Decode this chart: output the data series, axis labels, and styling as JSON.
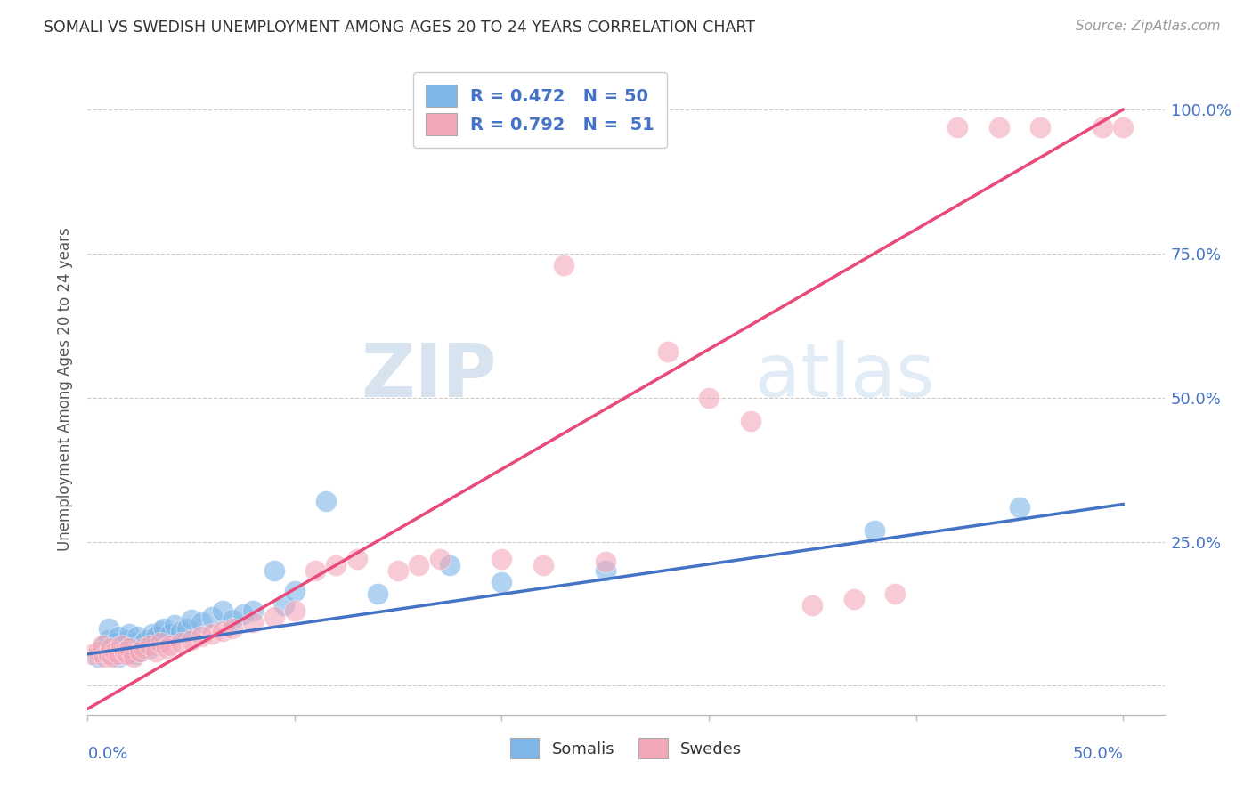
{
  "title": "SOMALI VS SWEDISH UNEMPLOYMENT AMONG AGES 20 TO 24 YEARS CORRELATION CHART",
  "source": "Source: ZipAtlas.com",
  "ylabel": "Unemployment Among Ages 20 to 24 years",
  "xlim": [
    0.0,
    0.52
  ],
  "ylim": [
    -0.05,
    1.08
  ],
  "somali_color": "#7EB6E8",
  "swede_color": "#F4A7B9",
  "somali_line_color": "#4472C4",
  "swede_line_color": "#E84B7A",
  "legend_somali_label": "R = 0.472   N = 50",
  "legend_swede_label": "R = 0.792   N =  51",
  "legend_bottom_somali": "Somalis",
  "legend_bottom_swede": "Swedes",
  "watermark_zip": "ZIP",
  "watermark_atlas": "atlas",
  "somali_scatter_x": [
    0.005,
    0.008,
    0.01,
    0.01,
    0.01,
    0.012,
    0.013,
    0.014,
    0.015,
    0.015,
    0.016,
    0.017,
    0.018,
    0.019,
    0.02,
    0.02,
    0.021,
    0.022,
    0.023,
    0.024,
    0.025,
    0.026,
    0.027,
    0.028,
    0.03,
    0.031,
    0.033,
    0.035,
    0.037,
    0.04,
    0.042,
    0.045,
    0.048,
    0.05,
    0.055,
    0.06,
    0.065,
    0.07,
    0.075,
    0.08,
    0.09,
    0.095,
    0.1,
    0.115,
    0.14,
    0.175,
    0.2,
    0.25,
    0.38,
    0.45
  ],
  "somali_scatter_y": [
    0.05,
    0.07,
    0.06,
    0.08,
    0.1,
    0.055,
    0.075,
    0.065,
    0.05,
    0.085,
    0.06,
    0.07,
    0.055,
    0.08,
    0.06,
    0.09,
    0.065,
    0.075,
    0.055,
    0.085,
    0.06,
    0.07,
    0.075,
    0.08,
    0.065,
    0.09,
    0.085,
    0.095,
    0.1,
    0.09,
    0.105,
    0.095,
    0.1,
    0.115,
    0.11,
    0.12,
    0.13,
    0.115,
    0.125,
    0.13,
    0.2,
    0.14,
    0.165,
    0.32,
    0.16,
    0.21,
    0.18,
    0.2,
    0.27,
    0.31
  ],
  "swede_scatter_x": [
    0.002,
    0.005,
    0.007,
    0.008,
    0.01,
    0.011,
    0.012,
    0.013,
    0.015,
    0.016,
    0.018,
    0.019,
    0.02,
    0.022,
    0.025,
    0.027,
    0.03,
    0.033,
    0.035,
    0.038,
    0.04,
    0.045,
    0.05,
    0.055,
    0.06,
    0.065,
    0.07,
    0.08,
    0.09,
    0.1,
    0.11,
    0.12,
    0.13,
    0.15,
    0.16,
    0.17,
    0.2,
    0.22,
    0.23,
    0.25,
    0.28,
    0.3,
    0.32,
    0.35,
    0.37,
    0.39,
    0.42,
    0.44,
    0.46,
    0.49,
    0.5
  ],
  "swede_scatter_y": [
    0.055,
    0.06,
    0.07,
    0.05,
    0.055,
    0.065,
    0.05,
    0.06,
    0.055,
    0.07,
    0.06,
    0.055,
    0.065,
    0.05,
    0.06,
    0.065,
    0.07,
    0.06,
    0.075,
    0.065,
    0.07,
    0.075,
    0.08,
    0.085,
    0.09,
    0.095,
    0.1,
    0.11,
    0.12,
    0.13,
    0.2,
    0.21,
    0.22,
    0.2,
    0.21,
    0.22,
    0.22,
    0.21,
    0.73,
    0.215,
    0.58,
    0.5,
    0.46,
    0.14,
    0.15,
    0.16,
    0.97,
    0.97,
    0.97,
    0.97,
    0.97
  ],
  "somali_line_x0": 0.0,
  "somali_line_y0": 0.055,
  "somali_line_x1": 0.5,
  "somali_line_y1": 0.315,
  "swede_line_x0": 0.0,
  "swede_line_y0": -0.04,
  "swede_line_x1": 0.5,
  "swede_line_y1": 1.0,
  "ytick_positions": [
    0.0,
    0.25,
    0.5,
    0.75,
    1.0
  ],
  "ytick_labels": [
    "",
    "25.0%",
    "50.0%",
    "75.0%",
    "100.0%"
  ],
  "xtick_positions": [
    0.0,
    0.1,
    0.2,
    0.3,
    0.4,
    0.5
  ],
  "marker_size": 300
}
